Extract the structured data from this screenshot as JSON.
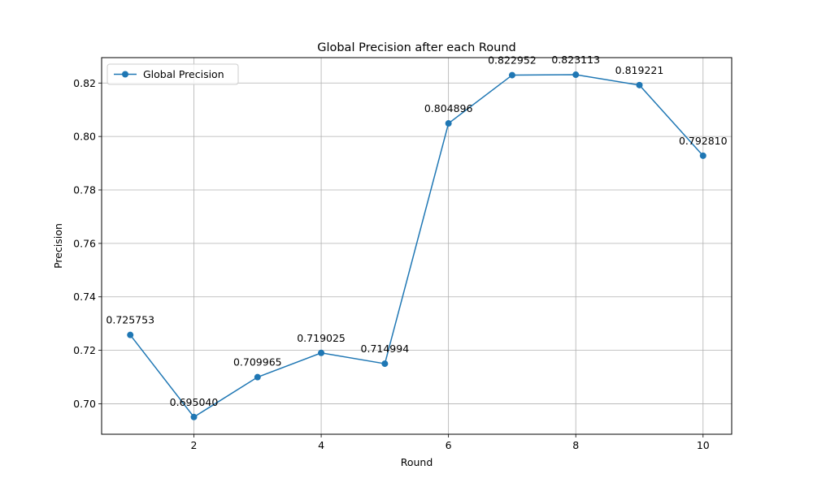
{
  "chart_data": {
    "type": "line",
    "title": "Global Precision after each Round",
    "xlabel": "Round",
    "ylabel": "Precision",
    "x": [
      1,
      2,
      3,
      4,
      5,
      6,
      7,
      8,
      9,
      10
    ],
    "series": [
      {
        "name": "Global Precision",
        "values": [
          0.725753,
          0.69504,
          0.709965,
          0.719025,
          0.714994,
          0.804896,
          0.822952,
          0.823113,
          0.819221,
          0.79281
        ],
        "labels": [
          "0.725753",
          "0.695040",
          "0.709965",
          "0.719025",
          "0.714994",
          "0.804896",
          "0.822952",
          "0.823113",
          "0.819221",
          "0.792810"
        ],
        "color": "#1f77b4"
      }
    ],
    "xlim": [
      0.55,
      10.45
    ],
    "ylim": [
      0.6886,
      0.8295
    ],
    "xticks": [
      2,
      4,
      6,
      8,
      10
    ],
    "xtick_labels": [
      "2",
      "4",
      "6",
      "8",
      "10"
    ],
    "yticks": [
      0.7,
      0.72,
      0.74,
      0.76,
      0.78,
      0.8,
      0.82
    ],
    "ytick_labels": [
      "0.70",
      "0.72",
      "0.74",
      "0.76",
      "0.78",
      "0.80",
      "0.82"
    ],
    "grid": true,
    "legend": "upper left",
    "grid_color": "#b0b0b0"
  }
}
